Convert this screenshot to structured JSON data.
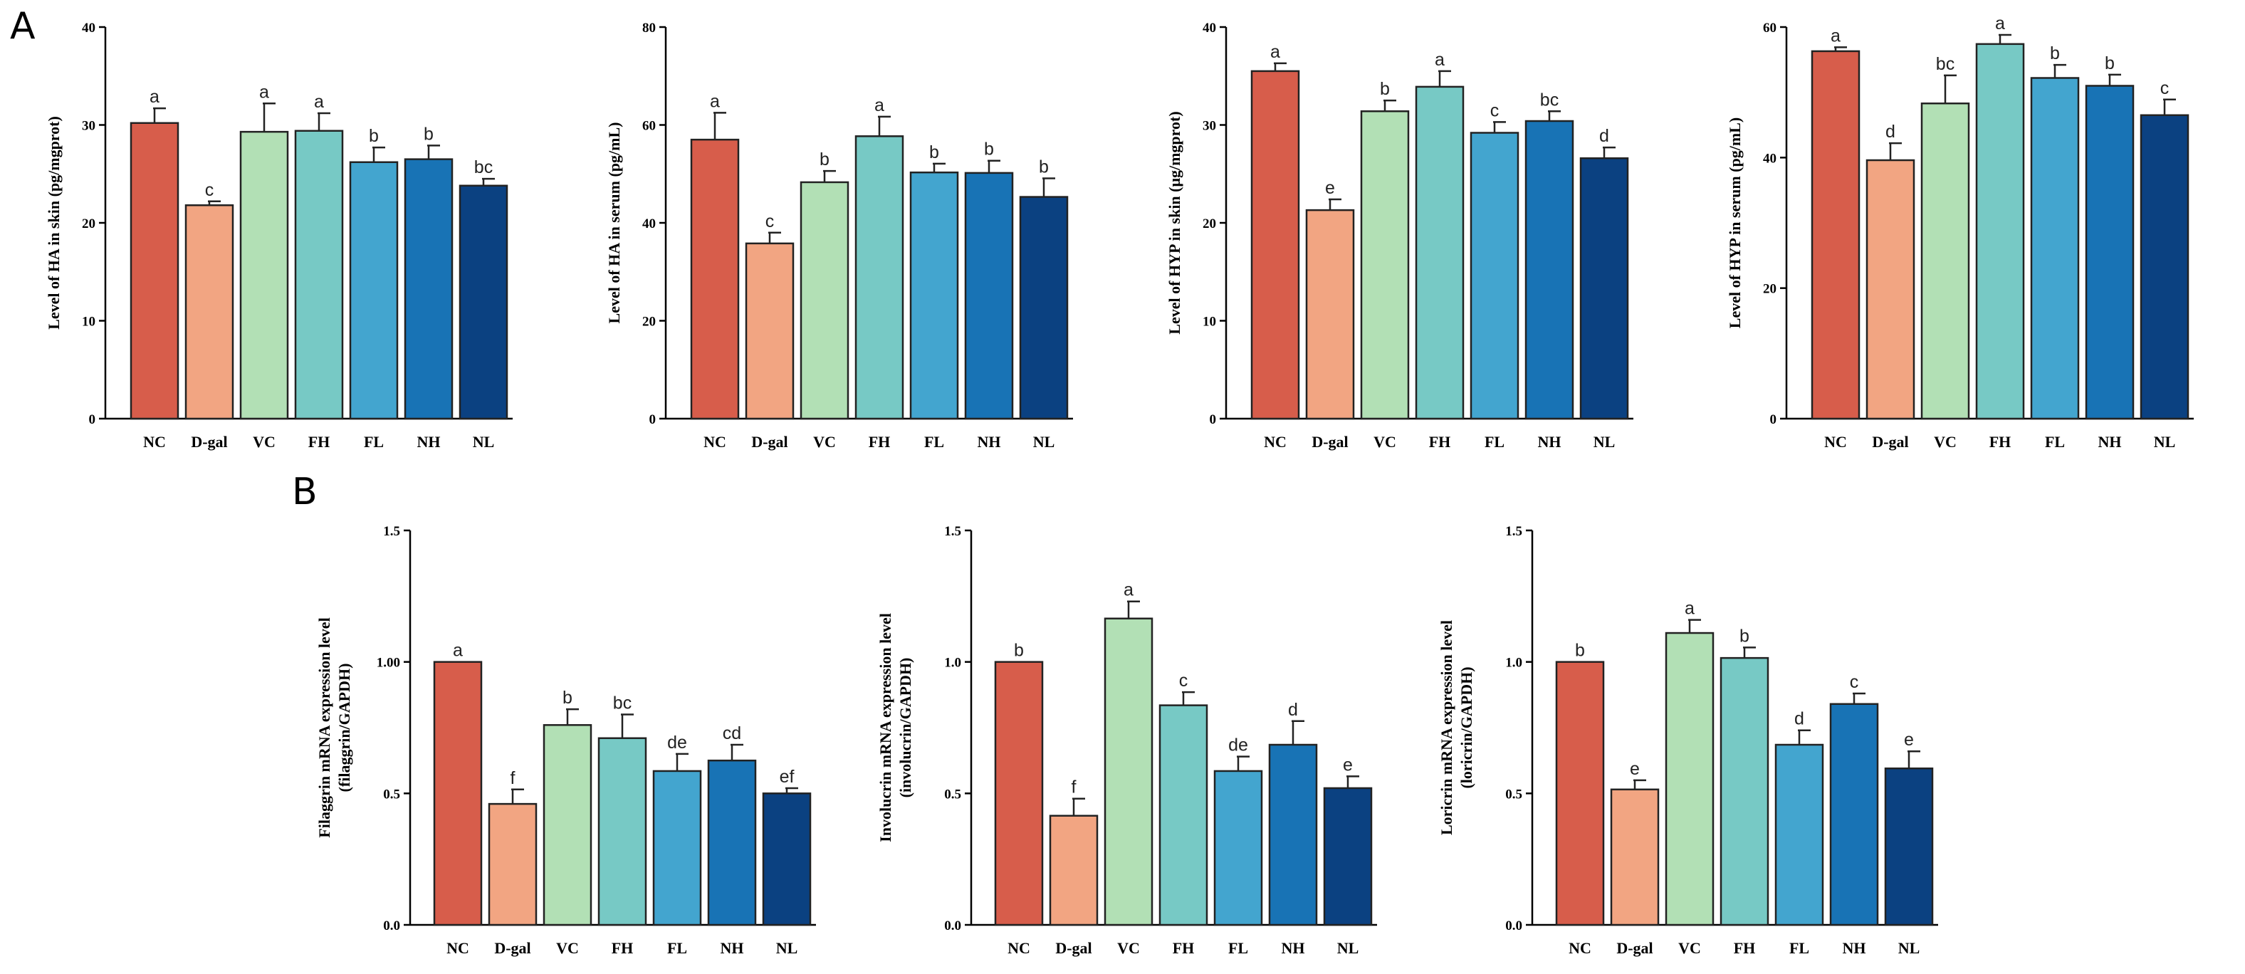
{
  "panel_labels": [
    "A",
    "B"
  ],
  "colors": {
    "NC": "#d75d4b",
    "D-gal": "#f2a582",
    "VC": "#b2e0b5",
    "FH": "#77c9c5",
    "FL": "#43a5cf",
    "NH": "#1873b5",
    "NL": "#0b4181"
  },
  "chart_data": [
    {
      "type": "bar",
      "panel": "A",
      "categories": [
        "NC",
        "D-gal",
        "VC",
        "FH",
        "FL",
        "NH",
        "NL"
      ],
      "values": [
        30.2,
        21.8,
        29.3,
        29.4,
        26.2,
        26.5,
        23.8
      ],
      "errors": [
        1.5,
        0.4,
        2.9,
        1.8,
        1.5,
        1.4,
        0.7
      ],
      "significance": [
        "a",
        "c",
        "a",
        "a",
        "b",
        "b",
        "bc"
      ],
      "ylabel": "Level of HA in skin (pg/mgprot)",
      "xlabel": "",
      "ylim": [
        0,
        40
      ],
      "yticks": [
        0,
        10,
        20,
        30,
        40
      ],
      "tick_labels": [
        "0",
        "10",
        "20",
        "30",
        "40"
      ]
    },
    {
      "type": "bar",
      "panel": "A",
      "categories": [
        "NC",
        "D-gal",
        "VC",
        "FH",
        "FL",
        "NH",
        "NL"
      ],
      "values": [
        57.0,
        35.8,
        48.3,
        57.7,
        50.3,
        50.2,
        45.3
      ],
      "errors": [
        5.5,
        2.2,
        2.3,
        4.0,
        1.8,
        2.5,
        3.8
      ],
      "significance": [
        "a",
        "c",
        "b",
        "a",
        "b",
        "b",
        "b"
      ],
      "ylabel": "Level of HA in serum (pg/mL)",
      "xlabel": "",
      "ylim": [
        0,
        80
      ],
      "yticks": [
        0,
        20,
        40,
        60,
        80
      ],
      "tick_labels": [
        "0",
        "20",
        "40",
        "60",
        "80"
      ]
    },
    {
      "type": "bar",
      "panel": "A",
      "categories": [
        "NC",
        "D-gal",
        "VC",
        "FH",
        "FL",
        "NH",
        "NL"
      ],
      "values": [
        35.5,
        21.3,
        31.4,
        33.9,
        29.2,
        30.4,
        26.6
      ],
      "errors": [
        0.8,
        1.1,
        1.1,
        1.6,
        1.1,
        1.0,
        1.1
      ],
      "significance": [
        "a",
        "e",
        "b",
        "a",
        "c",
        "bc",
        "d"
      ],
      "ylabel": "Level of HYP in skin (μg/mgprot)",
      "xlabel": "",
      "ylim": [
        0,
        40
      ],
      "yticks": [
        0,
        10,
        20,
        30,
        40
      ],
      "tick_labels": [
        "0",
        "10",
        "20",
        "30",
        "40"
      ]
    },
    {
      "type": "bar",
      "panel": "A",
      "categories": [
        "NC",
        "D-gal",
        "VC",
        "FH",
        "FL",
        "NH",
        "NL"
      ],
      "values": [
        56.3,
        39.6,
        48.3,
        57.4,
        52.2,
        51.0,
        46.5
      ],
      "errors": [
        0.6,
        2.6,
        4.3,
        1.4,
        2.0,
        1.7,
        2.4
      ],
      "significance": [
        "a",
        "d",
        "bc",
        "a",
        "b",
        "b",
        "c"
      ],
      "ylabel": "Level of HYP in serum (pg/mL)",
      "xlabel": "",
      "ylim": [
        0,
        60
      ],
      "yticks": [
        0,
        20,
        40,
        60
      ],
      "tick_labels": [
        "0",
        "20",
        "40",
        "60"
      ]
    },
    {
      "type": "bar",
      "panel": "B",
      "categories": [
        "NC",
        "D-gal",
        "VC",
        "FH",
        "FL",
        "NH",
        "NL"
      ],
      "values": [
        1.0,
        0.46,
        0.76,
        0.71,
        0.585,
        0.625,
        0.5
      ],
      "errors": [
        0.0,
        0.055,
        0.06,
        0.09,
        0.065,
        0.06,
        0.02
      ],
      "significance": [
        "a",
        "f",
        "b",
        "bc",
        "de",
        "cd",
        "ef"
      ],
      "ylabel": "Filaggrin mRNA expression level",
      "ylabel2": "(filaggrin/GAPDH)",
      "xlabel": "",
      "ylim": [
        0,
        1.5
      ],
      "yticks": [
        0,
        0.5,
        1.0,
        1.5
      ],
      "tick_labels": [
        "0.0",
        "0.5",
        "1.00",
        "1.5"
      ]
    },
    {
      "type": "bar",
      "panel": "B",
      "categories": [
        "NC",
        "D-gal",
        "VC",
        "FH",
        "FL",
        "NH",
        "NL"
      ],
      "values": [
        1.0,
        0.415,
        1.165,
        0.835,
        0.585,
        0.685,
        0.52
      ],
      "errors": [
        0.0,
        0.065,
        0.065,
        0.05,
        0.055,
        0.09,
        0.045
      ],
      "significance": [
        "b",
        "f",
        "a",
        "c",
        "de",
        "d",
        "e"
      ],
      "ylabel": "Involucrin mRNA expression level",
      "ylabel2": "(involucrin/GAPDH)",
      "xlabel": "",
      "ylim": [
        0,
        1.5
      ],
      "yticks": [
        0,
        0.5,
        1.0,
        1.5
      ],
      "tick_labels": [
        "0.0",
        "0.5",
        "1.0",
        "1.5"
      ]
    },
    {
      "type": "bar",
      "panel": "B",
      "categories": [
        "NC",
        "D-gal",
        "VC",
        "FH",
        "FL",
        "NH",
        "NL"
      ],
      "values": [
        1.0,
        0.515,
        1.11,
        1.015,
        0.685,
        0.84,
        0.595
      ],
      "errors": [
        0.0,
        0.035,
        0.05,
        0.04,
        0.055,
        0.04,
        0.065
      ],
      "significance": [
        "b",
        "e",
        "a",
        "b",
        "d",
        "c",
        "e"
      ],
      "ylabel": "Loricrin mRNA expression level",
      "ylabel2": "(loricrin/GAPDH)",
      "xlabel": "",
      "ylim": [
        0,
        1.5
      ],
      "yticks": [
        0,
        0.5,
        1.0,
        1.5
      ],
      "tick_labels": [
        "0.0",
        "0.5",
        "1.0",
        "1.5"
      ]
    }
  ]
}
